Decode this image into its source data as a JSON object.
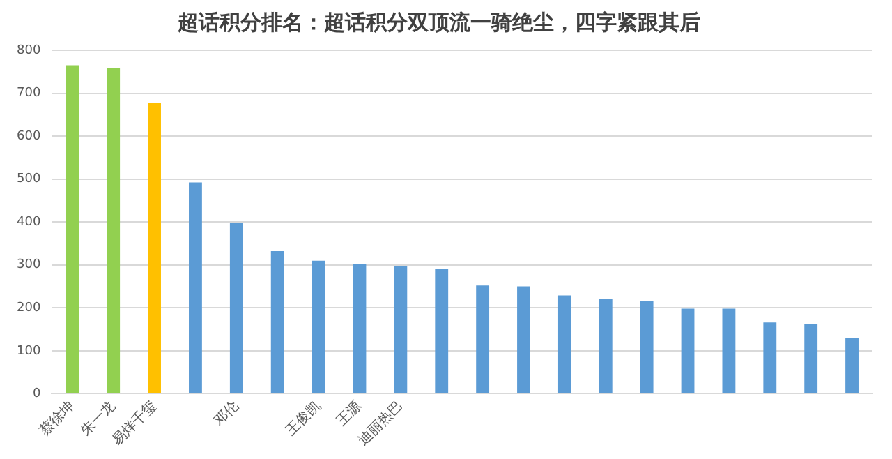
{
  "chart_data": {
    "type": "bar",
    "title": "超话积分排名：超话积分双顶流一骑绝尘，四字紧跟其后",
    "categories": [
      "蔡徐坤",
      "朱一龙",
      "易烊千玺",
      null,
      "邓伦",
      null,
      "王俊凯",
      "王源",
      "迪丽热巴",
      null,
      null,
      null,
      null,
      null,
      null,
      null,
      null,
      null,
      null,
      null
    ],
    "values": [
      765,
      758,
      678,
      492,
      397,
      332,
      310,
      303,
      298,
      291,
      252,
      250,
      229,
      220,
      216,
      198,
      198,
      166,
      162,
      130
    ],
    "colors": [
      "#92d050",
      "#92d050",
      "#ffc000",
      "#5b9bd5",
      "#5b9bd5",
      "#5b9bd5",
      "#5b9bd5",
      "#5b9bd5",
      "#5b9bd5",
      "#5b9bd5",
      "#5b9bd5",
      "#5b9bd5",
      "#5b9bd5",
      "#5b9bd5",
      "#5b9bd5",
      "#5b9bd5",
      "#5b9bd5",
      "#5b9bd5",
      "#5b9bd5",
      "#5b9bd5"
    ],
    "ylim": [
      0,
      800
    ],
    "yticks": [
      0,
      100,
      200,
      300,
      400,
      500,
      600,
      700,
      800
    ],
    "grid": "y",
    "legend": false
  }
}
